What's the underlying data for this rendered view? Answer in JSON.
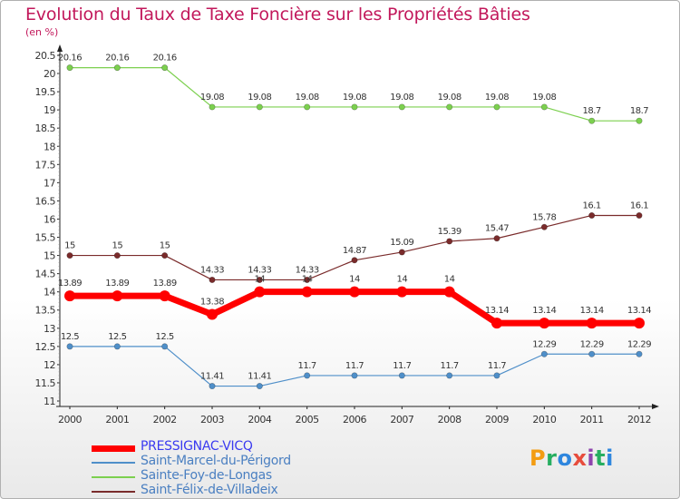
{
  "header": {
    "title": "Evolution du Taux de Taxe Foncière sur les Propriétés Bâties",
    "unit": "(en %)"
  },
  "brand": {
    "logo_text": "Proxiti",
    "letter_colors": [
      "#f39c12",
      "#27ae60",
      "#2e86de",
      "#e74c3c",
      "#8e44ad",
      "#27ae60",
      "#2e86de"
    ]
  },
  "chart_data": {
    "type": "line",
    "title": "Evolution du Taux de Taxe Foncière sur les Propriétés Bâties",
    "ylabel": "(en %)",
    "xlabel": "",
    "ylim": [
      11,
      20.5
    ],
    "yticks": [
      "11",
      "11.5",
      "12",
      "12.5",
      "13",
      "13.5",
      "14",
      "14.5",
      "15",
      "15.5",
      "16",
      "16.5",
      "17",
      "17.5",
      "18",
      "18.5",
      "19",
      "19.5",
      "20",
      "20.5"
    ],
    "categories": [
      "2000",
      "2001",
      "2002",
      "2003",
      "2004",
      "2005",
      "2006",
      "2007",
      "2008",
      "2009",
      "2010",
      "2011",
      "2012"
    ],
    "grid": false,
    "series": [
      {
        "name": "PRESSIGNAC-VICQ",
        "color": "#ff0000",
        "values": [
          13.89,
          13.89,
          13.89,
          13.38,
          14,
          14,
          14,
          14,
          14,
          13.14,
          13.14,
          13.14,
          13.14
        ],
        "labels": [
          "13.89",
          "13.89",
          "13.89",
          "13.38",
          "14",
          "14",
          "14",
          "14",
          "14",
          "13.14",
          "13.14",
          "13.14",
          "13.14"
        ]
      },
      {
        "name": "Saint-Marcel-du-Périgord",
        "color": "#4f8fc9",
        "values": [
          12.5,
          12.5,
          12.5,
          11.41,
          11.41,
          11.7,
          11.7,
          11.7,
          11.7,
          11.7,
          12.29,
          12.29,
          12.29
        ],
        "labels": [
          "12.5",
          "12.5",
          "12.5",
          "11.41",
          "11.41",
          "11.7",
          "11.7",
          "11.7",
          "11.7",
          "11.7",
          "12.29",
          "12.29",
          "12.29"
        ]
      },
      {
        "name": "Sainte-Foy-de-Longas",
        "color": "#7cd04f",
        "values": [
          20.16,
          20.16,
          20.16,
          19.08,
          19.08,
          19.08,
          19.08,
          19.08,
          19.08,
          19.08,
          19.08,
          18.7,
          18.7
        ],
        "labels": [
          "20.16",
          "20.16",
          "20.16",
          "19.08",
          "19.08",
          "19.08",
          "19.08",
          "19.08",
          "19.08",
          "19.08",
          "19.08",
          "18.7",
          "18.7"
        ]
      },
      {
        "name": "Saint-Félix-de-Villadeix",
        "color": "#7a2b2b",
        "values": [
          15,
          15,
          15,
          14.33,
          14.33,
          14.33,
          14.87,
          15.09,
          15.39,
          15.47,
          15.78,
          16.1,
          16.1
        ],
        "labels": [
          "15",
          "15",
          "15",
          "14.33",
          "14.33",
          "14.33",
          "14.87",
          "15.09",
          "15.39",
          "15.47",
          "15.78",
          "16.1",
          "16.1"
        ]
      }
    ]
  }
}
